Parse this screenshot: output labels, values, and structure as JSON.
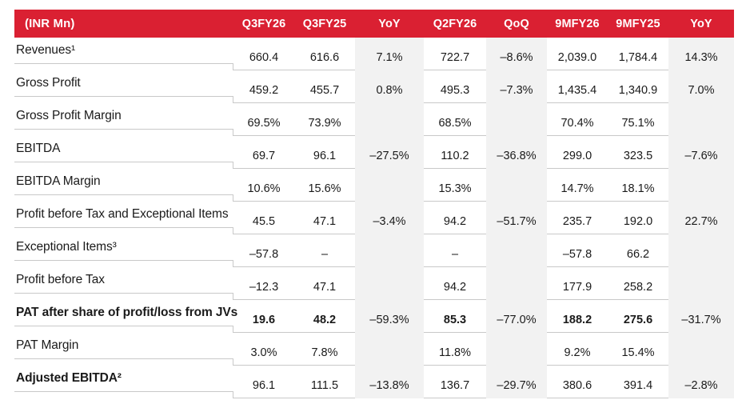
{
  "colors": {
    "header_red": "#DA2032",
    "band_gray": "#F2F2F2",
    "row_line": "#C9C9C9",
    "text_dark": "#1A1A1A",
    "header_text": "#FFFFFF"
  },
  "table": {
    "unit_label": "(INR Mn)",
    "columns": [
      {
        "key": "q3fy26",
        "label": "Q3FY26",
        "band": false
      },
      {
        "key": "q3fy25",
        "label": "Q3FY25",
        "band": false
      },
      {
        "key": "yoy-quarter",
        "label": "YoY",
        "band": true
      },
      {
        "key": "q2fy26",
        "label": "Q2FY26",
        "band": false
      },
      {
        "key": "qoq",
        "label": "QoQ",
        "band": true
      },
      {
        "key": "9mfy26",
        "label": "9MFY26",
        "band": false
      },
      {
        "key": "9mfy25",
        "label": "9MFY25",
        "band": false
      },
      {
        "key": "yoy-9m",
        "label": "YoY",
        "band": true
      }
    ],
    "rows": [
      {
        "label": "Revenues¹",
        "label_bold": false,
        "values_bold": false,
        "values": [
          "660.4",
          "616.6",
          "7.1%",
          "722.7",
          "–8.6%",
          "2,039.0",
          "1,784.4",
          "14.3%"
        ]
      },
      {
        "label": "Gross Profit",
        "label_bold": false,
        "values_bold": false,
        "values": [
          "459.2",
          "455.7",
          "0.8%",
          "495.3",
          "–7.3%",
          "1,435.4",
          "1,340.9",
          "7.0%"
        ]
      },
      {
        "label": "Gross Profit Margin",
        "label_bold": false,
        "values_bold": false,
        "values": [
          "69.5%",
          "73.9%",
          "",
          "68.5%",
          "",
          "70.4%",
          "75.1%",
          ""
        ]
      },
      {
        "label": "EBITDA",
        "label_bold": false,
        "values_bold": false,
        "values": [
          "69.7",
          "96.1",
          "–27.5%",
          "110.2",
          "–36.8%",
          "299.0",
          "323.5",
          "–7.6%"
        ]
      },
      {
        "label": "EBITDA Margin",
        "label_bold": false,
        "values_bold": false,
        "values": [
          "10.6%",
          "15.6%",
          "",
          "15.3%",
          "",
          "14.7%",
          "18.1%",
          ""
        ]
      },
      {
        "label": "Profit before Tax and Exceptional Items",
        "label_bold": false,
        "values_bold": false,
        "values": [
          "45.5",
          "47.1",
          "–3.4%",
          "94.2",
          "–51.7%",
          "235.7",
          "192.0",
          "22.7%"
        ]
      },
      {
        "label": "Exceptional Items³",
        "label_bold": false,
        "values_bold": false,
        "values": [
          "–57.8",
          "–",
          "",
          "–",
          "",
          "–57.8",
          "66.2",
          ""
        ]
      },
      {
        "label": "Profit before Tax",
        "label_bold": false,
        "values_bold": false,
        "values": [
          "–12.3",
          "47.1",
          "",
          "94.2",
          "",
          "177.9",
          "258.2",
          ""
        ]
      },
      {
        "label": "PAT after share of profit/loss from JVs",
        "label_bold": true,
        "values_bold": true,
        "values": [
          "19.6",
          "48.2",
          "–59.3%",
          "85.3",
          "–77.0%",
          "188.2",
          "275.6",
          "–31.7%"
        ]
      },
      {
        "label": "PAT Margin",
        "label_bold": false,
        "values_bold": false,
        "values": [
          "3.0%",
          "7.8%",
          "",
          "11.8%",
          "",
          "9.2%",
          "15.4%",
          ""
        ]
      },
      {
        "label": "Adjusted EBITDA²",
        "label_bold": true,
        "values_bold": false,
        "values": [
          "96.1",
          "111.5",
          "–13.8%",
          "136.7",
          "–29.7%",
          "380.6",
          "391.4",
          "–2.8%"
        ]
      }
    ]
  }
}
